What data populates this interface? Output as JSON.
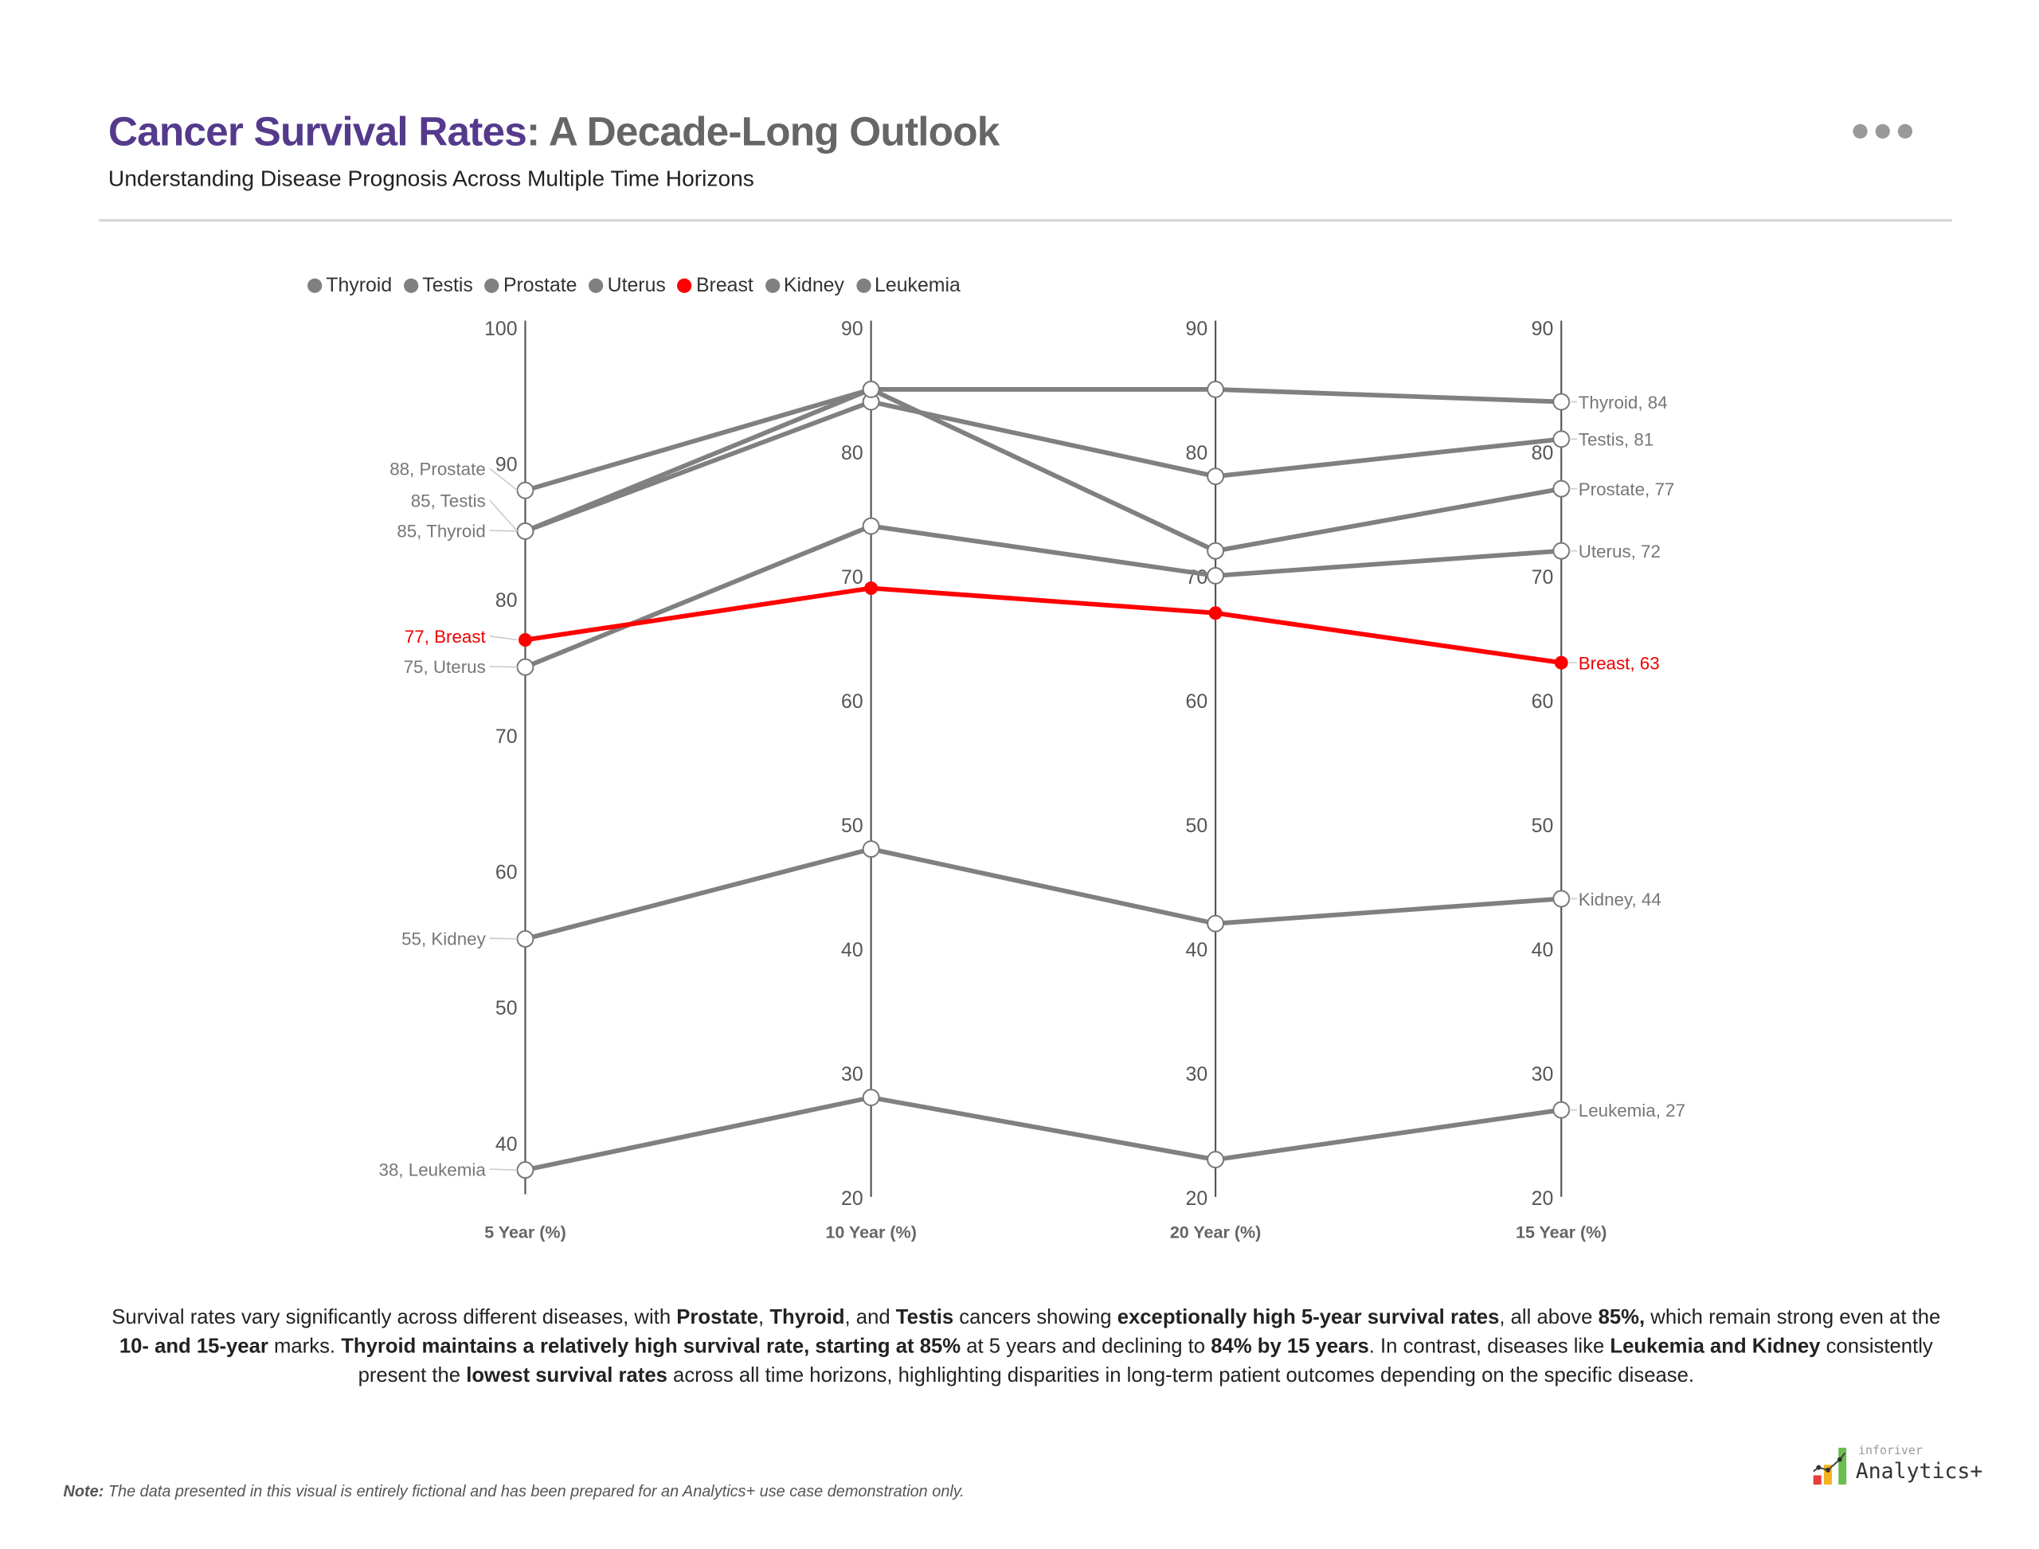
{
  "header": {
    "title_accent": "Cancer Survival Rates",
    "title_rest": ": A Decade-Long Outlook",
    "subtitle": "Understanding Disease Prognosis Across Multiple Time Horizons",
    "more_icon": "ellipsis-icon"
  },
  "colors": {
    "accent": "#553a8c",
    "series_default": "#808080",
    "highlight": "#ff0000"
  },
  "chart_data": {
    "type": "parallel-coordinates line",
    "axes": [
      {
        "label": "5 Year (%)",
        "range": [
          36,
          100
        ],
        "ticks": [
          100,
          90,
          80,
          70,
          60,
          50,
          40
        ]
      },
      {
        "label": "10 Year (%)",
        "range": [
          20,
          90
        ],
        "ticks": [
          90,
          80,
          70,
          60,
          50,
          40,
          30,
          20
        ]
      },
      {
        "label": "20 Year (%)",
        "range": [
          20,
          90
        ],
        "ticks": [
          90,
          80,
          70,
          60,
          50,
          40,
          30,
          20
        ]
      },
      {
        "label": "15 Year (%)",
        "range": [
          20,
          90
        ],
        "ticks": [
          90,
          80,
          70,
          60,
          50,
          40,
          30,
          20
        ]
      }
    ],
    "series": [
      {
        "name": "Thyroid",
        "color": "#808080",
        "values": [
          85,
          85,
          85,
          84
        ],
        "left_label": "85, Thyroid",
        "right_label": "Thyroid, 84"
      },
      {
        "name": "Testis",
        "color": "#808080",
        "values": [
          85,
          84,
          78,
          81
        ],
        "left_label": "85, Testis",
        "right_label": "Testis, 81"
      },
      {
        "name": "Prostate",
        "color": "#808080",
        "values": [
          88,
          85,
          72,
          77
        ],
        "left_label": "88, Prostate",
        "right_label": "Prostate, 77"
      },
      {
        "name": "Uterus",
        "color": "#808080",
        "values": [
          75,
          74,
          70,
          72
        ],
        "left_label": "75, Uterus",
        "right_label": "Uterus, 72"
      },
      {
        "name": "Breast",
        "color": "#ff0000",
        "values": [
          77,
          69,
          67,
          63
        ],
        "left_label": "77, Breast",
        "right_label": "Breast, 63"
      },
      {
        "name": "Kidney",
        "color": "#808080",
        "values": [
          55,
          48,
          42,
          44
        ],
        "left_label": "55, Kidney",
        "right_label": "Kidney, 44"
      },
      {
        "name": "Leukemia",
        "color": "#808080",
        "values": [
          38,
          28,
          23,
          27
        ],
        "left_label": "38, Leukemia",
        "right_label": "Leukemia, 27"
      }
    ],
    "legend": "top-left",
    "grid": false
  },
  "summary": [
    {
      "t": "Survival rates vary significantly across different diseases, with ",
      "b": false
    },
    {
      "t": "Prostate",
      "b": true
    },
    {
      "t": ", ",
      "b": false
    },
    {
      "t": "Thyroid",
      "b": true
    },
    {
      "t": ", and ",
      "b": false
    },
    {
      "t": "Testis",
      "b": true
    },
    {
      "t": " cancers showing ",
      "b": false
    },
    {
      "t": "exceptionally high 5-year survival rates",
      "b": true
    },
    {
      "t": ", all above ",
      "b": false
    },
    {
      "t": "85%,",
      "b": true
    },
    {
      "t": " which remain strong even at the ",
      "b": false
    },
    {
      "t": "10- and 15-year",
      "b": true
    },
    {
      "t": " marks. ",
      "b": false
    },
    {
      "t": "Thyroid maintains a relatively high survival rate, starting at 85%",
      "b": true
    },
    {
      "t": " at 5 years and declining to ",
      "b": false
    },
    {
      "t": "84% by 15 years",
      "b": true
    },
    {
      "t": ". In contrast, diseases like ",
      "b": false
    },
    {
      "t": "Leukemia and Kidney",
      "b": true
    },
    {
      "t": " consistently present the ",
      "b": false
    },
    {
      "t": "lowest survival rates",
      "b": true
    },
    {
      "t": " across all time horizons, highlighting disparities in long-term patient outcomes depending on the specific disease.",
      "b": false
    }
  ],
  "note": {
    "label": "Note:",
    "text": " The data presented in this visual is entirely fictional and has been prepared for an Analytics+ use case demonstration only."
  },
  "logo": {
    "small": "inforiver",
    "big": "Analytics+"
  }
}
